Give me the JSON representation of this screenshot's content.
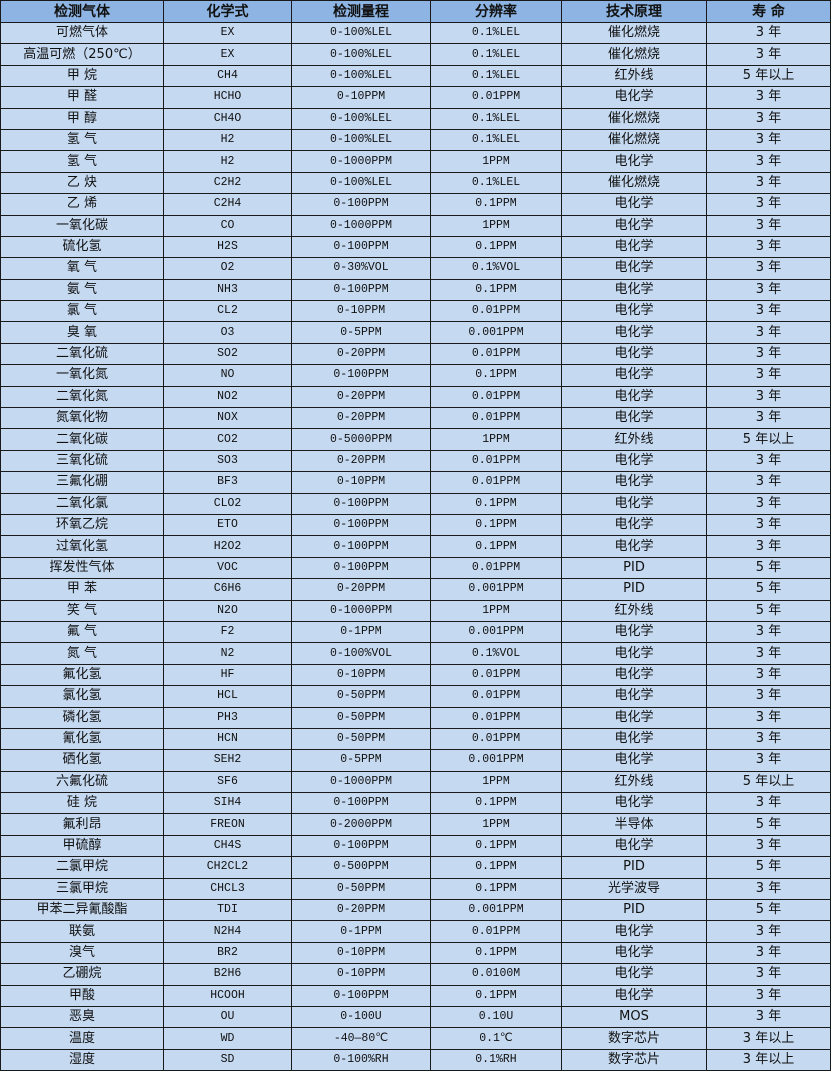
{
  "colors": {
    "header_bg": "#8db4e2",
    "row_bg": "#c5d9f1",
    "border": "#1a1a1a"
  },
  "headers": [
    "检测气体",
    "化学式",
    "检测量程",
    "分辨率",
    "技术原理",
    "寿 命"
  ],
  "rows": [
    [
      "可燃气体",
      "EX",
      "0-100%LEL",
      "0.1%LEL",
      "催化燃烧",
      "3 年"
    ],
    [
      "高温可燃（250℃）",
      "EX",
      "0-100%LEL",
      "0.1%LEL",
      "催化燃烧",
      "3 年"
    ],
    [
      "甲 烷",
      "CH4",
      "0-100%LEL",
      "0.1%LEL",
      "红外线",
      "5 年以上"
    ],
    [
      "甲 醛",
      "HCHO",
      "0-10PPM",
      "0.01PPM",
      "电化学",
      "3 年"
    ],
    [
      "甲 醇",
      "CH4O",
      "0-100%LEL",
      "0.1%LEL",
      "催化燃烧",
      "3 年"
    ],
    [
      "氢 气",
      "H2",
      "0-100%LEL",
      "0.1%LEL",
      "催化燃烧",
      "3 年"
    ],
    [
      "氢 气",
      "H2",
      "0-1000PPM",
      "1PPM",
      "电化学",
      "3 年"
    ],
    [
      "乙 炔",
      "C2H2",
      "0-100%LEL",
      "0.1%LEL",
      "催化燃烧",
      "3 年"
    ],
    [
      "乙 烯",
      "C2H4",
      "0-100PPM",
      "0.1PPM",
      "电化学",
      "3 年"
    ],
    [
      "一氧化碳",
      "CO",
      "0-1000PPM",
      "1PPM",
      "电化学",
      "3 年"
    ],
    [
      "硫化氢",
      "H2S",
      "0-100PPM",
      "0.1PPM",
      "电化学",
      "3 年"
    ],
    [
      "氧 气",
      "O2",
      "0-30%VOL",
      "0.1%VOL",
      "电化学",
      "3 年"
    ],
    [
      "氨 气",
      "NH3",
      "0-100PPM",
      "0.1PPM",
      "电化学",
      "3 年"
    ],
    [
      "氯 气",
      "CL2",
      "0-10PPM",
      "0.01PPM",
      "电化学",
      "3 年"
    ],
    [
      "臭 氧",
      "O3",
      "0-5PPM",
      "0.001PPM",
      "电化学",
      "3 年"
    ],
    [
      "二氧化硫",
      "SO2",
      "0-20PPM",
      "0.01PPM",
      "电化学",
      "3 年"
    ],
    [
      "一氧化氮",
      "NO",
      "0-100PPM",
      "0.1PPM",
      "电化学",
      "3 年"
    ],
    [
      "二氧化氮",
      "NO2",
      "0-20PPM",
      "0.01PPM",
      "电化学",
      "3 年"
    ],
    [
      "氮氧化物",
      "NOX",
      "0-20PPM",
      "0.01PPM",
      "电化学",
      "3 年"
    ],
    [
      "二氧化碳",
      "CO2",
      "0-5000PPM",
      "1PPM",
      "红外线",
      "5 年以上"
    ],
    [
      "三氧化硫",
      "SO3",
      "0-20PPM",
      "0.01PPM",
      "电化学",
      "3 年"
    ],
    [
      "三氟化硼",
      "BF3",
      "0-10PPM",
      "0.01PPM",
      "电化学",
      "3 年"
    ],
    [
      "二氧化氯",
      "CLO2",
      "0-100PPM",
      "0.1PPM",
      "电化学",
      "3 年"
    ],
    [
      "环氧乙烷",
      "ETO",
      "0-100PPM",
      "0.1PPM",
      "电化学",
      "3 年"
    ],
    [
      "过氧化氢",
      "H2O2",
      "0-100PPM",
      "0.1PPM",
      "电化学",
      "3 年"
    ],
    [
      "挥发性气体",
      "VOC",
      "0-100PPM",
      "0.01PPM",
      "PID",
      "5 年"
    ],
    [
      "甲 苯",
      "C6H6",
      "0-20PPM",
      "0.001PPM",
      "PID",
      "5 年"
    ],
    [
      "笑 气",
      "N2O",
      "0-1000PPM",
      "1PPM",
      "红外线",
      "5 年"
    ],
    [
      "氟 气",
      "F2",
      "0-1PPM",
      "0.001PPM",
      "电化学",
      "3 年"
    ],
    [
      "氮 气",
      "N2",
      "0-100%VOL",
      "0.1%VOL",
      "电化学",
      "3 年"
    ],
    [
      "氟化氢",
      "HF",
      "0-10PPM",
      "0.01PPM",
      "电化学",
      "3 年"
    ],
    [
      "氯化氢",
      "HCL",
      "0-50PPM",
      "0.01PPM",
      "电化学",
      "3 年"
    ],
    [
      "磷化氢",
      "PH3",
      "0-50PPM",
      "0.01PPM",
      "电化学",
      "3 年"
    ],
    [
      "氰化氢",
      "HCN",
      "0-50PPM",
      "0.01PPM",
      "电化学",
      "3 年"
    ],
    [
      "硒化氢",
      "SEH2",
      "0-5PPM",
      "0.001PPM",
      "电化学",
      "3 年"
    ],
    [
      "六氟化硫",
      "SF6",
      "0-1000PPM",
      "1PPM",
      "红外线",
      "5 年以上"
    ],
    [
      "硅 烷",
      "SIH4",
      "0-100PPM",
      "0.1PPM",
      "电化学",
      "3 年"
    ],
    [
      "氟利昂",
      "FREON",
      "0-2000PPM",
      "1PPM",
      "半导体",
      "5 年"
    ],
    [
      "甲硫醇",
      "CH4S",
      "0-100PPM",
      "0.1PPM",
      "电化学",
      "3 年"
    ],
    [
      "二氯甲烷",
      "CH2CL2",
      "0-500PPM",
      "0.1PPM",
      "PID",
      "5 年"
    ],
    [
      "三氯甲烷",
      "CHCL3",
      "0-50PPM",
      "0.1PPM",
      "光学波导",
      "3 年"
    ],
    [
      "甲苯二异氰酸酯",
      "TDI",
      "0-20PPM",
      "0.001PPM",
      "PID",
      "5 年"
    ],
    [
      "联氨",
      "N2H4",
      "0-1PPM",
      "0.01PPM",
      "电化学",
      "3 年"
    ],
    [
      "溴气",
      "BR2",
      "0-10PPM",
      "0.1PPM",
      "电化学",
      "3 年"
    ],
    [
      "乙硼烷",
      "B2H6",
      "0-10PPM",
      "0.0100M",
      "电化学",
      "3 年"
    ],
    [
      "甲酸",
      "HCOOH",
      "0-100PPM",
      "0.1PPM",
      "电化学",
      "3 年"
    ],
    [
      "恶臭",
      "OU",
      "0-100U",
      "0.10U",
      "MOS",
      "3 年"
    ],
    [
      "温度",
      "WD",
      "-40—80℃",
      "0.1℃",
      "数字芯片",
      "3 年以上"
    ],
    [
      "湿度",
      "SD",
      "0-100%RH",
      "0.1%RH",
      "数字芯片",
      "3 年以上"
    ]
  ]
}
